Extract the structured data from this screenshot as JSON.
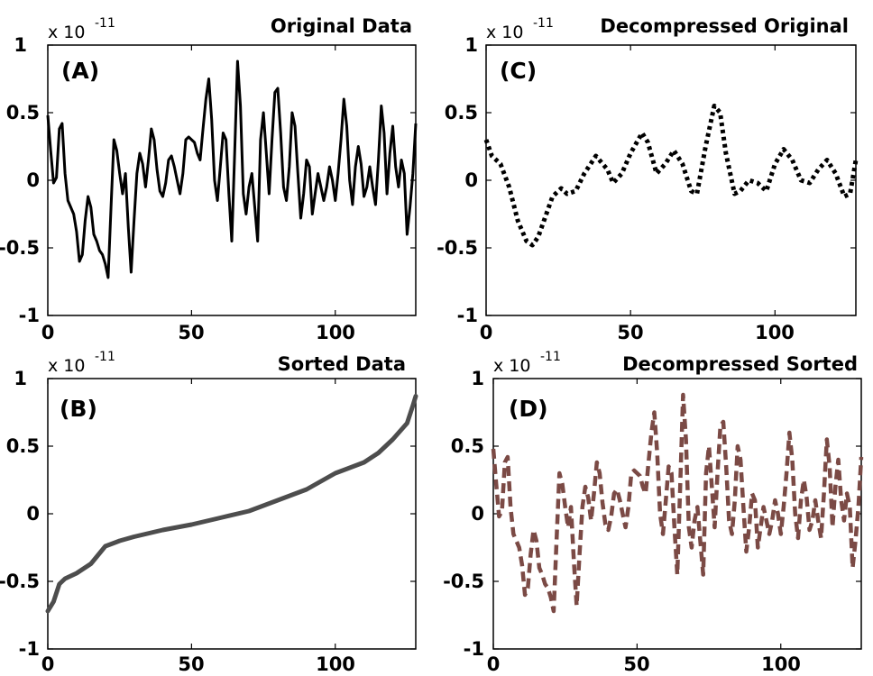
{
  "chart_data": [
    {
      "id": "A",
      "type": "line",
      "letter": "(A)",
      "title": "Original Data",
      "exponent_base": "x 10",
      "exponent": "-11",
      "xlim": [
        0,
        128
      ],
      "ylim": [
        -1,
        1
      ],
      "xticks": [
        0,
        50,
        100
      ],
      "xtick_labels": [
        "0",
        "50",
        "100"
      ],
      "yticks": [
        1,
        0.5,
        0,
        -0.5,
        -1
      ],
      "ytick_labels": [
        "1",
        "0.5",
        "0",
        "-0.5",
        "-1"
      ],
      "style": {
        "color": "#000000",
        "width": 3,
        "dash": "none"
      },
      "x": [
        0,
        1,
        2,
        3,
        4,
        5,
        6,
        7,
        8,
        9,
        10,
        11,
        12,
        13,
        14,
        15,
        16,
        17,
        18,
        19,
        20,
        21,
        22,
        23,
        24,
        25,
        26,
        27,
        28,
        29,
        30,
        31,
        32,
        33,
        34,
        35,
        36,
        37,
        38,
        39,
        40,
        41,
        42,
        43,
        44,
        45,
        46,
        47,
        48,
        49,
        50,
        51,
        52,
        53,
        54,
        55,
        56,
        57,
        58,
        59,
        60,
        61,
        62,
        63,
        64,
        65,
        66,
        67,
        68,
        69,
        70,
        71,
        72,
        73,
        74,
        75,
        76,
        77,
        78,
        79,
        80,
        81,
        82,
        83,
        84,
        85,
        86,
        87,
        88,
        89,
        90,
        91,
        92,
        93,
        94,
        95,
        96,
        97,
        98,
        99,
        100,
        101,
        102,
        103,
        104,
        105,
        106,
        107,
        108,
        109,
        110,
        111,
        112,
        113,
        114,
        115,
        116,
        117,
        118,
        119,
        120,
        121,
        122,
        123,
        124,
        125,
        126,
        127,
        128
      ],
      "y": [
        0.48,
        0.22,
        -0.02,
        0.02,
        0.38,
        0.42,
        0.05,
        -0.15,
        -0.2,
        -0.25,
        -0.38,
        -0.6,
        -0.55,
        -0.3,
        -0.12,
        -0.2,
        -0.4,
        -0.45,
        -0.52,
        -0.55,
        -0.62,
        -0.72,
        -0.2,
        0.3,
        0.22,
        0.05,
        -0.1,
        0.05,
        -0.35,
        -0.68,
        -0.3,
        0.05,
        0.2,
        0.12,
        -0.05,
        0.15,
        0.38,
        0.3,
        0.08,
        -0.08,
        -0.12,
        -0.02,
        0.15,
        0.18,
        0.1,
        0.0,
        -0.1,
        0.05,
        0.3,
        0.32,
        0.3,
        0.28,
        0.2,
        0.15,
        0.38,
        0.6,
        0.75,
        0.45,
        0.0,
        -0.15,
        0.1,
        0.35,
        0.3,
        -0.1,
        -0.45,
        0.2,
        0.88,
        0.55,
        -0.1,
        -0.25,
        -0.05,
        0.05,
        -0.2,
        -0.45,
        0.3,
        0.5,
        0.2,
        -0.1,
        0.3,
        0.65,
        0.68,
        0.35,
        -0.05,
        -0.15,
        0.1,
        0.5,
        0.4,
        0.05,
        -0.28,
        -0.1,
        0.15,
        0.1,
        -0.25,
        -0.1,
        0.05,
        -0.05,
        -0.15,
        -0.05,
        0.1,
        0.0,
        -0.15,
        0.05,
        0.3,
        0.6,
        0.4,
        0.0,
        -0.18,
        0.1,
        0.25,
        0.12,
        -0.12,
        -0.05,
        0.1,
        -0.05,
        -0.18,
        0.15,
        0.55,
        0.35,
        -0.1,
        0.2,
        0.4,
        0.1,
        -0.05,
        0.15,
        0.05,
        -0.4,
        -0.2,
        0.05,
        0.42
      ]
    },
    {
      "id": "B",
      "type": "line",
      "letter": "(B)",
      "title": "Sorted Data",
      "exponent_base": "x 10",
      "exponent": "-11",
      "xlim": [
        0,
        128
      ],
      "ylim": [
        -1,
        1
      ],
      "xticks": [
        0,
        50,
        100
      ],
      "xtick_labels": [
        "0",
        "50",
        "100"
      ],
      "yticks": [
        1,
        0.5,
        0,
        -0.5,
        -1
      ],
      "ytick_labels": [
        "1",
        "0.5",
        "0",
        "-0.5",
        "-1"
      ],
      "style": {
        "color": "#4d4d4d",
        "width": 5,
        "dash": "none"
      },
      "x": [
        0,
        2,
        4,
        6,
        10,
        15,
        20,
        25,
        30,
        40,
        50,
        60,
        70,
        80,
        90,
        100,
        110,
        115,
        120,
        125,
        127,
        128
      ],
      "y": [
        -0.72,
        -0.65,
        -0.52,
        -0.48,
        -0.44,
        -0.37,
        -0.24,
        -0.2,
        -0.17,
        -0.12,
        -0.08,
        -0.03,
        0.02,
        0.1,
        0.18,
        0.3,
        0.38,
        0.45,
        0.55,
        0.67,
        0.8,
        0.87
      ]
    },
    {
      "id": "C",
      "type": "line",
      "letter": "(C)",
      "title": "Decompressed Original",
      "exponent_base": "x 10",
      "exponent": "-11",
      "xlim": [
        0,
        128
      ],
      "ylim": [
        -1,
        1
      ],
      "xticks": [
        0,
        50,
        100
      ],
      "xtick_labels": [
        "0",
        "50",
        "100"
      ],
      "yticks": [
        1,
        0.5,
        0,
        -0.5,
        -1
      ],
      "ytick_labels": [
        "1",
        "0.5",
        "0",
        "-0.5",
        "-1"
      ],
      "style": {
        "color": "#000000",
        "width": 5,
        "dash": "4 4"
      },
      "x": [
        0,
        2,
        5,
        8,
        11,
        14,
        16,
        18,
        20,
        23,
        26,
        28,
        31,
        34,
        38,
        42,
        44,
        47,
        50,
        54,
        56,
        59,
        62,
        65,
        68,
        71,
        73,
        76,
        79,
        81,
        83,
        86,
        88,
        91,
        94,
        97,
        100,
        103,
        106,
        109,
        112,
        115,
        118,
        121,
        124,
        126,
        128
      ],
      "y": [
        0.3,
        0.18,
        0.12,
        -0.05,
        -0.3,
        -0.45,
        -0.48,
        -0.42,
        -0.3,
        -0.12,
        -0.06,
        -0.1,
        -0.08,
        0.05,
        0.18,
        0.08,
        -0.02,
        0.05,
        0.2,
        0.35,
        0.28,
        0.05,
        0.12,
        0.22,
        0.12,
        -0.08,
        -0.1,
        0.25,
        0.55,
        0.5,
        0.2,
        -0.1,
        -0.08,
        0.0,
        -0.02,
        -0.08,
        0.12,
        0.23,
        0.15,
        0.0,
        -0.02,
        0.08,
        0.15,
        0.05,
        -0.12,
        -0.1,
        0.15
      ]
    },
    {
      "id": "D",
      "type": "line",
      "letter": "(D)",
      "title": "Decompressed Sorted",
      "exponent_base": "x 10",
      "exponent": "-11",
      "xlim": [
        0,
        128
      ],
      "ylim": [
        -1,
        1
      ],
      "xticks": [
        0,
        50,
        100
      ],
      "xtick_labels": [
        "0",
        "50",
        "100"
      ],
      "yticks": [
        1,
        0.5,
        0,
        -0.5,
        -1
      ],
      "ytick_labels": [
        "1",
        "0.5",
        "0",
        "-0.5",
        "-1"
      ],
      "style": {
        "color": "#7b4a45",
        "width": 4.5,
        "dash": "11 6"
      },
      "x": [
        0,
        1,
        2,
        3,
        4,
        5,
        6,
        7,
        8,
        9,
        10,
        11,
        12,
        13,
        14,
        15,
        16,
        17,
        18,
        19,
        20,
        21,
        22,
        23,
        24,
        25,
        26,
        27,
        28,
        29,
        30,
        31,
        32,
        33,
        34,
        35,
        36,
        37,
        38,
        39,
        40,
        41,
        42,
        43,
        44,
        45,
        46,
        47,
        48,
        49,
        50,
        51,
        52,
        53,
        54,
        55,
        56,
        57,
        58,
        59,
        60,
        61,
        62,
        63,
        64,
        65,
        66,
        67,
        68,
        69,
        70,
        71,
        72,
        73,
        74,
        75,
        76,
        77,
        78,
        79,
        80,
        81,
        82,
        83,
        84,
        85,
        86,
        87,
        88,
        89,
        90,
        91,
        92,
        93,
        94,
        95,
        96,
        97,
        98,
        99,
        100,
        101,
        102,
        103,
        104,
        105,
        106,
        107,
        108,
        109,
        110,
        111,
        112,
        113,
        114,
        115,
        116,
        117,
        118,
        119,
        120,
        121,
        122,
        123,
        124,
        125,
        126,
        127,
        128
      ],
      "y": [
        0.48,
        0.22,
        -0.02,
        0.02,
        0.38,
        0.42,
        0.05,
        -0.15,
        -0.2,
        -0.25,
        -0.38,
        -0.6,
        -0.55,
        -0.3,
        -0.12,
        -0.2,
        -0.4,
        -0.45,
        -0.52,
        -0.55,
        -0.62,
        -0.72,
        -0.2,
        0.3,
        0.22,
        0.05,
        -0.1,
        0.05,
        -0.35,
        -0.68,
        -0.3,
        0.05,
        0.2,
        0.12,
        -0.05,
        0.15,
        0.38,
        0.3,
        0.08,
        -0.08,
        -0.12,
        -0.02,
        0.15,
        0.18,
        0.1,
        0.0,
        -0.1,
        0.05,
        0.3,
        0.32,
        0.3,
        0.28,
        0.2,
        0.15,
        0.38,
        0.6,
        0.75,
        0.45,
        0.0,
        -0.15,
        0.1,
        0.35,
        0.3,
        -0.1,
        -0.45,
        0.2,
        0.88,
        0.55,
        -0.1,
        -0.25,
        -0.05,
        0.05,
        -0.2,
        -0.45,
        0.3,
        0.5,
        0.2,
        -0.1,
        0.3,
        0.65,
        0.68,
        0.35,
        -0.05,
        -0.15,
        0.1,
        0.5,
        0.4,
        0.05,
        -0.28,
        -0.1,
        0.15,
        0.1,
        -0.25,
        -0.1,
        0.05,
        -0.05,
        -0.15,
        -0.05,
        0.1,
        0.0,
        -0.15,
        0.05,
        0.3,
        0.6,
        0.4,
        0.0,
        -0.18,
        0.1,
        0.25,
        0.12,
        -0.12,
        -0.05,
        0.1,
        -0.05,
        -0.18,
        0.15,
        0.55,
        0.35,
        -0.1,
        0.2,
        0.4,
        0.1,
        -0.05,
        0.15,
        0.05,
        -0.4,
        -0.2,
        0.05,
        0.42
      ]
    }
  ]
}
